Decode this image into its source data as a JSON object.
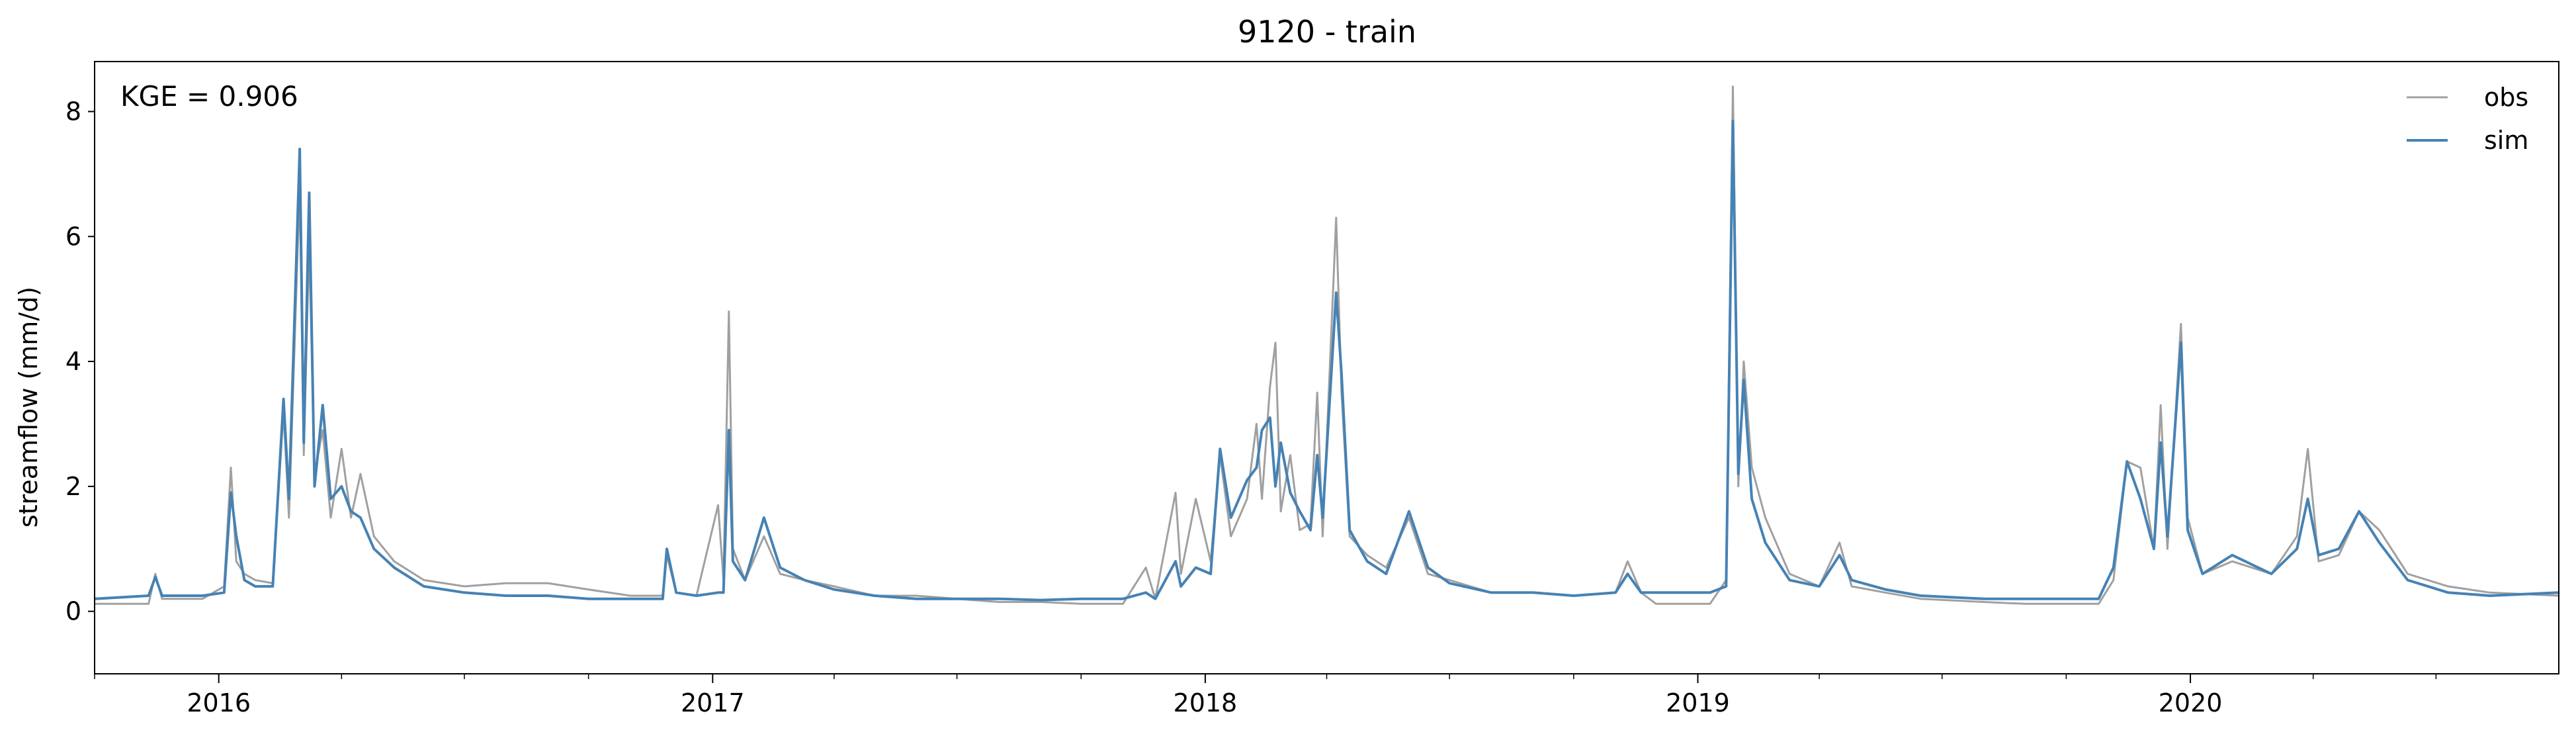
{
  "chart_data": {
    "type": "line",
    "title": "9120 - train",
    "xlabel": "",
    "ylabel": "streamflow (mm/d)",
    "annotation": "KGE = 0.906",
    "legend_position": "top-right",
    "grid": false,
    "xlim": [
      "2015-10-01",
      "2020-09-30"
    ],
    "ylim": [
      -1,
      8.8
    ],
    "yticks": [
      0,
      2,
      4,
      6,
      8
    ],
    "ytick_labels": [
      "0",
      "2",
      "4",
      "6",
      "8"
    ],
    "xticks": [
      "2016-01-01",
      "2017-01-01",
      "2018-01-01",
      "2019-01-01",
      "2020-01-01"
    ],
    "xtick_labels": [
      "2016",
      "2017",
      "2018",
      "2019",
      "2020"
    ],
    "series": [
      {
        "name": "obs",
        "color": "#a0a0a0",
        "points": [
          [
            "2015-10-01",
            0.12
          ],
          [
            "2015-11-10",
            0.12
          ],
          [
            "2015-11-15",
            0.6
          ],
          [
            "2015-11-20",
            0.2
          ],
          [
            "2015-12-20",
            0.2
          ],
          [
            "2016-01-05",
            0.4
          ],
          [
            "2016-01-10",
            2.3
          ],
          [
            "2016-01-14",
            0.8
          ],
          [
            "2016-01-20",
            0.6
          ],
          [
            "2016-01-28",
            0.5
          ],
          [
            "2016-02-10",
            0.45
          ],
          [
            "2016-02-18",
            3.2
          ],
          [
            "2016-02-22",
            1.5
          ],
          [
            "2016-03-01",
            6.8
          ],
          [
            "2016-03-04",
            2.5
          ],
          [
            "2016-03-08",
            5.9
          ],
          [
            "2016-03-12",
            2.2
          ],
          [
            "2016-03-18",
            2.9
          ],
          [
            "2016-03-24",
            1.5
          ],
          [
            "2016-04-01",
            2.6
          ],
          [
            "2016-04-08",
            1.5
          ],
          [
            "2016-04-15",
            2.2
          ],
          [
            "2016-04-25",
            1.2
          ],
          [
            "2016-05-10",
            0.8
          ],
          [
            "2016-06-01",
            0.5
          ],
          [
            "2016-07-01",
            0.4
          ],
          [
            "2016-08-01",
            0.45
          ],
          [
            "2016-09-01",
            0.45
          ],
          [
            "2016-10-01",
            0.35
          ],
          [
            "2016-11-01",
            0.25
          ],
          [
            "2016-11-25",
            0.25
          ],
          [
            "2016-11-28",
            0.9
          ],
          [
            "2016-12-05",
            0.3
          ],
          [
            "2016-12-20",
            0.25
          ],
          [
            "2017-01-05",
            1.7
          ],
          [
            "2017-01-09",
            0.5
          ],
          [
            "2017-01-13",
            4.8
          ],
          [
            "2017-01-16",
            1.0
          ],
          [
            "2017-01-25",
            0.5
          ],
          [
            "2017-02-08",
            1.2
          ],
          [
            "2017-02-20",
            0.6
          ],
          [
            "2017-03-10",
            0.5
          ],
          [
            "2017-04-01",
            0.4
          ],
          [
            "2017-05-01",
            0.25
          ],
          [
            "2017-06-01",
            0.25
          ],
          [
            "2017-07-01",
            0.2
          ],
          [
            "2017-08-01",
            0.15
          ],
          [
            "2017-09-01",
            0.15
          ],
          [
            "2017-10-01",
            0.12
          ],
          [
            "2017-11-01",
            0.12
          ],
          [
            "2017-11-18",
            0.7
          ],
          [
            "2017-11-25",
            0.2
          ],
          [
            "2017-12-10",
            1.9
          ],
          [
            "2017-12-14",
            0.6
          ],
          [
            "2017-12-25",
            1.8
          ],
          [
            "2018-01-05",
            0.8
          ],
          [
            "2018-01-12",
            2.5
          ],
          [
            "2018-01-20",
            1.2
          ],
          [
            "2018-02-01",
            1.8
          ],
          [
            "2018-02-08",
            3.0
          ],
          [
            "2018-02-12",
            1.8
          ],
          [
            "2018-02-18",
            3.6
          ],
          [
            "2018-02-22",
            4.3
          ],
          [
            "2018-02-26",
            1.6
          ],
          [
            "2018-03-05",
            2.5
          ],
          [
            "2018-03-12",
            1.3
          ],
          [
            "2018-03-20",
            1.4
          ],
          [
            "2018-03-25",
            3.5
          ],
          [
            "2018-03-29",
            1.2
          ],
          [
            "2018-04-08",
            6.3
          ],
          [
            "2018-04-12",
            3.5
          ],
          [
            "2018-04-18",
            1.2
          ],
          [
            "2018-05-01",
            0.9
          ],
          [
            "2018-05-15",
            0.7
          ],
          [
            "2018-06-01",
            1.5
          ],
          [
            "2018-06-15",
            0.6
          ],
          [
            "2018-07-01",
            0.5
          ],
          [
            "2018-08-01",
            0.3
          ],
          [
            "2018-09-01",
            0.3
          ],
          [
            "2018-10-01",
            0.25
          ],
          [
            "2018-11-01",
            0.3
          ],
          [
            "2018-11-10",
            0.8
          ],
          [
            "2018-11-20",
            0.3
          ],
          [
            "2018-12-01",
            0.12
          ],
          [
            "2019-01-10",
            0.12
          ],
          [
            "2019-01-22",
            0.5
          ],
          [
            "2019-01-27",
            8.4
          ],
          [
            "2019-01-31",
            2.0
          ],
          [
            "2019-02-04",
            4.0
          ],
          [
            "2019-02-10",
            2.3
          ],
          [
            "2019-02-20",
            1.5
          ],
          [
            "2019-03-10",
            0.6
          ],
          [
            "2019-04-01",
            0.4
          ],
          [
            "2019-04-16",
            1.1
          ],
          [
            "2019-04-25",
            0.4
          ],
          [
            "2019-05-20",
            0.3
          ],
          [
            "2019-06-15",
            0.2
          ],
          [
            "2019-08-01",
            0.15
          ],
          [
            "2019-09-01",
            0.12
          ],
          [
            "2019-10-25",
            0.12
          ],
          [
            "2019-11-05",
            0.5
          ],
          [
            "2019-11-15",
            2.4
          ],
          [
            "2019-11-25",
            2.3
          ],
          [
            "2019-12-05",
            1.0
          ],
          [
            "2019-12-10",
            3.3
          ],
          [
            "2019-12-15",
            1.0
          ],
          [
            "2019-12-25",
            4.6
          ],
          [
            "2019-12-30",
            1.5
          ],
          [
            "2020-01-10",
            0.6
          ],
          [
            "2020-02-01",
            0.8
          ],
          [
            "2020-03-01",
            0.6
          ],
          [
            "2020-03-20",
            1.2
          ],
          [
            "2020-03-28",
            2.6
          ],
          [
            "2020-04-05",
            0.8
          ],
          [
            "2020-04-20",
            0.9
          ],
          [
            "2020-05-05",
            1.6
          ],
          [
            "2020-05-20",
            1.3
          ],
          [
            "2020-06-10",
            0.6
          ],
          [
            "2020-07-10",
            0.4
          ],
          [
            "2020-08-10",
            0.3
          ],
          [
            "2020-09-30",
            0.25
          ]
        ]
      },
      {
        "name": "sim",
        "color": "#4682b4",
        "points": [
          [
            "2015-10-01",
            0.2
          ],
          [
            "2015-11-10",
            0.25
          ],
          [
            "2015-11-15",
            0.55
          ],
          [
            "2015-11-20",
            0.25
          ],
          [
            "2015-12-20",
            0.25
          ],
          [
            "2016-01-05",
            0.3
          ],
          [
            "2016-01-10",
            1.9
          ],
          [
            "2016-01-14",
            1.2
          ],
          [
            "2016-01-20",
            0.5
          ],
          [
            "2016-01-28",
            0.4
          ],
          [
            "2016-02-10",
            0.4
          ],
          [
            "2016-02-18",
            3.4
          ],
          [
            "2016-02-22",
            1.8
          ],
          [
            "2016-03-01",
            7.4
          ],
          [
            "2016-03-04",
            2.7
          ],
          [
            "2016-03-08",
            6.7
          ],
          [
            "2016-03-12",
            2.0
          ],
          [
            "2016-03-18",
            3.3
          ],
          [
            "2016-03-24",
            1.8
          ],
          [
            "2016-04-01",
            2.0
          ],
          [
            "2016-04-08",
            1.6
          ],
          [
            "2016-04-15",
            1.5
          ],
          [
            "2016-04-25",
            1.0
          ],
          [
            "2016-05-10",
            0.7
          ],
          [
            "2016-06-01",
            0.4
          ],
          [
            "2016-07-01",
            0.3
          ],
          [
            "2016-08-01",
            0.25
          ],
          [
            "2016-09-01",
            0.25
          ],
          [
            "2016-10-01",
            0.2
          ],
          [
            "2016-11-01",
            0.2
          ],
          [
            "2016-11-25",
            0.2
          ],
          [
            "2016-11-28",
            1.0
          ],
          [
            "2016-12-05",
            0.3
          ],
          [
            "2016-12-20",
            0.25
          ],
          [
            "2017-01-05",
            0.3
          ],
          [
            "2017-01-09",
            0.3
          ],
          [
            "2017-01-13",
            2.9
          ],
          [
            "2017-01-16",
            0.8
          ],
          [
            "2017-01-25",
            0.5
          ],
          [
            "2017-02-08",
            1.5
          ],
          [
            "2017-02-20",
            0.7
          ],
          [
            "2017-03-10",
            0.5
          ],
          [
            "2017-04-01",
            0.35
          ],
          [
            "2017-05-01",
            0.25
          ],
          [
            "2017-06-01",
            0.2
          ],
          [
            "2017-07-01",
            0.2
          ],
          [
            "2017-08-01",
            0.2
          ],
          [
            "2017-09-01",
            0.18
          ],
          [
            "2017-10-01",
            0.2
          ],
          [
            "2017-11-01",
            0.2
          ],
          [
            "2017-11-18",
            0.3
          ],
          [
            "2017-11-25",
            0.2
          ],
          [
            "2017-12-10",
            0.8
          ],
          [
            "2017-12-14",
            0.4
          ],
          [
            "2017-12-25",
            0.7
          ],
          [
            "2018-01-05",
            0.6
          ],
          [
            "2018-01-12",
            2.6
          ],
          [
            "2018-01-20",
            1.5
          ],
          [
            "2018-02-01",
            2.1
          ],
          [
            "2018-02-08",
            2.3
          ],
          [
            "2018-02-12",
            2.9
          ],
          [
            "2018-02-18",
            3.1
          ],
          [
            "2018-02-22",
            2.0
          ],
          [
            "2018-02-26",
            2.7
          ],
          [
            "2018-03-05",
            1.9
          ],
          [
            "2018-03-12",
            1.6
          ],
          [
            "2018-03-20",
            1.3
          ],
          [
            "2018-03-25",
            2.5
          ],
          [
            "2018-03-29",
            1.5
          ],
          [
            "2018-04-08",
            5.1
          ],
          [
            "2018-04-12",
            3.8
          ],
          [
            "2018-04-18",
            1.3
          ],
          [
            "2018-05-01",
            0.8
          ],
          [
            "2018-05-15",
            0.6
          ],
          [
            "2018-06-01",
            1.6
          ],
          [
            "2018-06-15",
            0.7
          ],
          [
            "2018-07-01",
            0.45
          ],
          [
            "2018-08-01",
            0.3
          ],
          [
            "2018-09-01",
            0.3
          ],
          [
            "2018-10-01",
            0.25
          ],
          [
            "2018-11-01",
            0.3
          ],
          [
            "2018-11-10",
            0.6
          ],
          [
            "2018-11-20",
            0.3
          ],
          [
            "2018-12-01",
            0.3
          ],
          [
            "2019-01-10",
            0.3
          ],
          [
            "2019-01-22",
            0.4
          ],
          [
            "2019-01-27",
            7.85
          ],
          [
            "2019-01-31",
            2.2
          ],
          [
            "2019-02-04",
            3.7
          ],
          [
            "2019-02-10",
            1.8
          ],
          [
            "2019-02-20",
            1.1
          ],
          [
            "2019-03-10",
            0.5
          ],
          [
            "2019-04-01",
            0.4
          ],
          [
            "2019-04-16",
            0.9
          ],
          [
            "2019-04-25",
            0.5
          ],
          [
            "2019-05-20",
            0.35
          ],
          [
            "2019-06-15",
            0.25
          ],
          [
            "2019-08-01",
            0.2
          ],
          [
            "2019-09-01",
            0.2
          ],
          [
            "2019-10-25",
            0.2
          ],
          [
            "2019-11-05",
            0.7
          ],
          [
            "2019-11-15",
            2.4
          ],
          [
            "2019-11-25",
            1.8
          ],
          [
            "2019-12-05",
            1.0
          ],
          [
            "2019-12-10",
            2.7
          ],
          [
            "2019-12-15",
            1.2
          ],
          [
            "2019-12-25",
            4.3
          ],
          [
            "2019-12-30",
            1.3
          ],
          [
            "2020-01-10",
            0.6
          ],
          [
            "2020-02-01",
            0.9
          ],
          [
            "2020-03-01",
            0.6
          ],
          [
            "2020-03-20",
            1.0
          ],
          [
            "2020-03-28",
            1.8
          ],
          [
            "2020-04-05",
            0.9
          ],
          [
            "2020-04-20",
            1.0
          ],
          [
            "2020-05-05",
            1.6
          ],
          [
            "2020-05-20",
            1.1
          ],
          [
            "2020-06-10",
            0.5
          ],
          [
            "2020-07-10",
            0.3
          ],
          [
            "2020-08-10",
            0.25
          ],
          [
            "2020-09-30",
            0.3
          ]
        ]
      }
    ]
  }
}
